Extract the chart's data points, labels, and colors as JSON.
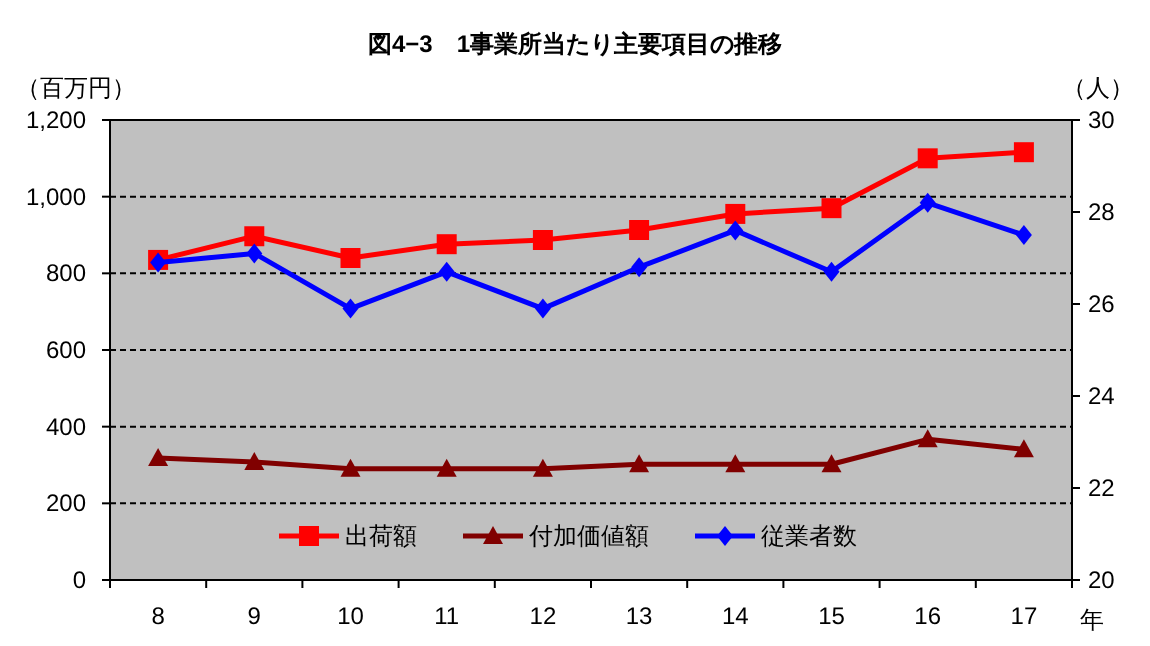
{
  "chart_data": {
    "type": "line",
    "title": "図4−3　1事業所当たり主要項目の推移",
    "ylabel": "（百万円）",
    "y2label": "（人）",
    "xlabel": "年",
    "categories": [
      "8",
      "9",
      "10",
      "11",
      "12",
      "13",
      "14",
      "15",
      "16",
      "17"
    ],
    "series": [
      {
        "name": "出荷額",
        "color": "#ff0000",
        "marker": "square",
        "values": [
          835,
          897,
          840,
          876,
          887,
          913,
          955,
          970,
          1100,
          1116
        ]
      },
      {
        "name": "付加価値額",
        "color": "#800000",
        "marker": "triangle",
        "values": [
          318,
          308,
          290,
          290,
          290,
          302,
          302,
          302,
          367,
          341
        ]
      },
      {
        "name": "従業者数",
        "color": "#0000ff",
        "marker": "diamond",
        "axis": "y2",
        "values": [
          26.9,
          27.1,
          25.9,
          26.7,
          25.9,
          26.8,
          27.6,
          26.7,
          28.2,
          27.5
        ]
      }
    ],
    "ylim": [
      0,
      1200
    ],
    "yticks": [
      0,
      200,
      400,
      600,
      800,
      {
        "value": 1000,
        "label": "1,000"
      },
      {
        "value": 1200,
        "label": "1,200"
      }
    ],
    "y2lim": [
      20,
      30
    ],
    "y2ticks": [
      20,
      22,
      24,
      26,
      28,
      30
    ],
    "grid": "y",
    "legend": "bottom",
    "line_style": "solid"
  }
}
